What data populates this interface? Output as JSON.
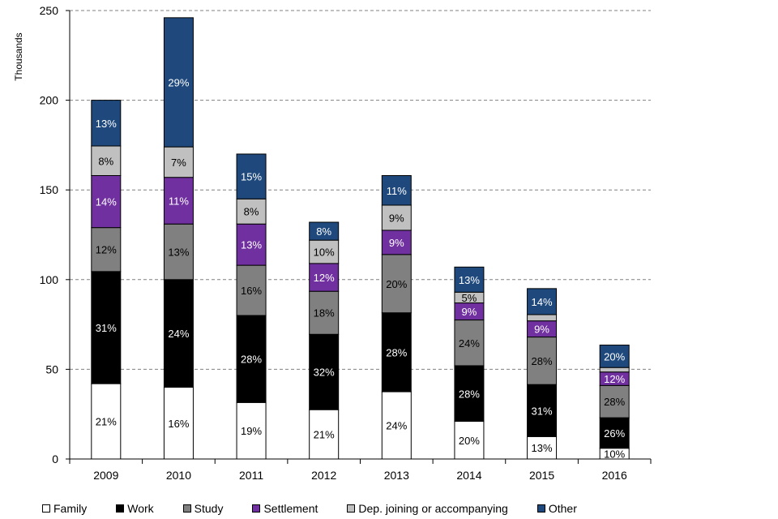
{
  "chart_data": {
    "type": "bar",
    "stacked": true,
    "ylabel": "Thousands",
    "xlabel": "",
    "ylim": [
      0,
      250
    ],
    "yticks": [
      0,
      50,
      100,
      150,
      200,
      250
    ],
    "grid": true,
    "legend_position": "bottom",
    "categories": [
      "2009",
      "2010",
      "2011",
      "2012",
      "2013",
      "2014",
      "2015",
      "2016"
    ],
    "series": [
      {
        "name": "Family",
        "color": "#ffffff",
        "label_color": "#000000",
        "values": [
          42,
          40,
          31.5,
          27.5,
          37.5,
          21,
          12.5,
          6
        ],
        "labels": [
          "21%",
          "16%",
          "19%",
          "21%",
          "24%",
          "20%",
          "13%",
          "10%"
        ]
      },
      {
        "name": "Work",
        "color": "#000000",
        "label_color": "#ffffff",
        "values": [
          62.5,
          60,
          48.5,
          42,
          44,
          31,
          29,
          17
        ],
        "labels": [
          "31%",
          "24%",
          "28%",
          "32%",
          "28%",
          "28%",
          "31%",
          "26%"
        ]
      },
      {
        "name": "Study",
        "color": "#808080",
        "label_color": "#000000",
        "values": [
          24.5,
          31,
          28,
          24,
          32.5,
          25.5,
          26.5,
          18
        ],
        "labels": [
          "12%",
          "13%",
          "16%",
          "18%",
          "20%",
          "24%",
          "28%",
          "28%"
        ]
      },
      {
        "name": "Settlement",
        "color": "#7030a0",
        "label_color": "#ffffff",
        "values": [
          29,
          26,
          23,
          15.5,
          13.5,
          9.5,
          9,
          7.5
        ],
        "labels": [
          "14%",
          "11%",
          "13%",
          "12%",
          "9%",
          "9%",
          "9%",
          "12%"
        ]
      },
      {
        "name": "Dep. joining or accompanying",
        "color": "#c0c0c0",
        "label_color": "#000000",
        "values": [
          16.5,
          17,
          14,
          13,
          14,
          6,
          3.5,
          2.5
        ],
        "labels": [
          "8%",
          "7%",
          "8%",
          "10%",
          "9%",
          "5%",
          "",
          ""
        ]
      },
      {
        "name": "Other",
        "color": "#1f497d",
        "label_color": "#ffffff",
        "values": [
          25.5,
          72,
          25,
          10,
          16.5,
          14,
          14.5,
          12.5
        ],
        "labels": [
          "13%",
          "29%",
          "15%",
          "8%",
          "11%",
          "13%",
          "14%",
          "20%"
        ]
      }
    ]
  }
}
